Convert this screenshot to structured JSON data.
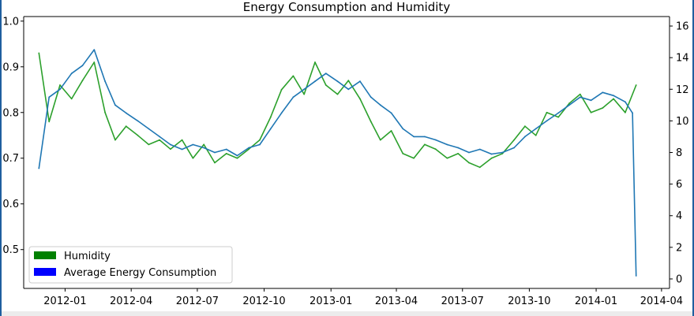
{
  "chart_data": {
    "type": "line",
    "title": "Energy Consumption and Humidity",
    "xlabel": "",
    "ylabel_left": "",
    "ylabel_right": "",
    "x_ticks": [
      "2012-01",
      "2012-04",
      "2012-07",
      "2012-10",
      "2013-01",
      "2013-04",
      "2013-07",
      "2013-10",
      "2014-01",
      "2014-04"
    ],
    "x_range": [
      "2011-11-05",
      "2014-04-12"
    ],
    "y_left": {
      "ticks": [
        "0.5",
        "0.6",
        "0.7",
        "0.8",
        "0.9",
        "1.0"
      ],
      "range": [
        0.415,
        1.01
      ]
    },
    "y_right": {
      "ticks": [
        "0",
        "2",
        "4",
        "6",
        "8",
        "10",
        "12",
        "14",
        "16"
      ],
      "range": [
        -0.6,
        16.6
      ]
    },
    "legend": {
      "position": "lower-left",
      "entries": [
        {
          "label": "Humidity",
          "color": "#008000"
        },
        {
          "label": "Average Energy Consumption",
          "color": "#0000ff"
        }
      ]
    },
    "grid": false,
    "series": [
      {
        "name": "Humidity",
        "axis": "left",
        "color": "#2ca02c",
        "x": [
          "2011-11-26",
          "2011-12-10",
          "2011-12-25",
          "2012-01-10",
          "2012-01-25",
          "2012-02-10",
          "2012-02-25",
          "2012-03-10",
          "2012-03-25",
          "2012-04-10",
          "2012-04-25",
          "2012-05-10",
          "2012-05-25",
          "2012-06-10",
          "2012-06-25",
          "2012-07-10",
          "2012-07-25",
          "2012-08-10",
          "2012-08-25",
          "2012-09-10",
          "2012-09-25",
          "2012-10-10",
          "2012-10-25",
          "2012-11-10",
          "2012-11-25",
          "2012-12-10",
          "2012-12-25",
          "2013-01-10",
          "2013-01-25",
          "2013-02-10",
          "2013-02-25",
          "2013-03-10",
          "2013-03-25",
          "2013-04-10",
          "2013-04-25",
          "2013-05-10",
          "2013-05-25",
          "2013-06-10",
          "2013-06-25",
          "2013-07-10",
          "2013-07-25",
          "2013-08-10",
          "2013-08-25",
          "2013-09-10",
          "2013-09-25",
          "2013-10-10",
          "2013-10-25",
          "2013-11-10",
          "2013-11-25",
          "2013-12-10",
          "2013-12-25",
          "2014-01-10",
          "2014-01-25",
          "2014-02-10",
          "2014-02-25"
        ],
        "values": [
          0.93,
          0.78,
          0.86,
          0.83,
          0.87,
          0.91,
          0.8,
          0.74,
          0.77,
          0.75,
          0.73,
          0.74,
          0.72,
          0.74,
          0.7,
          0.73,
          0.69,
          0.71,
          0.7,
          0.72,
          0.74,
          0.79,
          0.85,
          0.88,
          0.84,
          0.91,
          0.86,
          0.84,
          0.87,
          0.83,
          0.78,
          0.74,
          0.76,
          0.71,
          0.7,
          0.73,
          0.72,
          0.7,
          0.71,
          0.69,
          0.68,
          0.7,
          0.71,
          0.74,
          0.77,
          0.75,
          0.8,
          0.79,
          0.82,
          0.84,
          0.8,
          0.81,
          0.83,
          0.8,
          0.86
        ]
      },
      {
        "name": "Average Energy Consumption",
        "axis": "right",
        "color": "#1f77b4",
        "x": [
          "2011-11-26",
          "2011-12-10",
          "2011-12-25",
          "2012-01-10",
          "2012-01-25",
          "2012-02-10",
          "2012-02-25",
          "2012-03-10",
          "2012-03-25",
          "2012-04-10",
          "2012-04-25",
          "2012-05-10",
          "2012-05-25",
          "2012-06-10",
          "2012-06-25",
          "2012-07-10",
          "2012-07-25",
          "2012-08-10",
          "2012-08-25",
          "2012-09-10",
          "2012-09-25",
          "2012-10-10",
          "2012-10-25",
          "2012-11-10",
          "2012-11-25",
          "2012-12-10",
          "2012-12-25",
          "2013-01-10",
          "2013-01-25",
          "2013-02-10",
          "2013-02-25",
          "2013-03-10",
          "2013-03-25",
          "2013-04-10",
          "2013-04-25",
          "2013-05-10",
          "2013-05-25",
          "2013-06-10",
          "2013-06-25",
          "2013-07-10",
          "2013-07-25",
          "2013-08-10",
          "2013-08-25",
          "2013-09-10",
          "2013-09-25",
          "2013-10-10",
          "2013-10-25",
          "2013-11-10",
          "2013-11-25",
          "2013-12-10",
          "2013-12-25",
          "2014-01-10",
          "2014-01-25",
          "2014-02-10",
          "2014-02-20",
          "2014-02-25"
        ],
        "values": [
          7.0,
          11.5,
          12.0,
          13.0,
          13.5,
          14.5,
          12.5,
          11.0,
          10.5,
          10.0,
          9.5,
          9.0,
          8.5,
          8.2,
          8.5,
          8.3,
          8.0,
          8.2,
          7.8,
          8.3,
          8.5,
          9.5,
          10.5,
          11.5,
          12.0,
          12.5,
          13.0,
          12.5,
          12.0,
          12.5,
          11.5,
          11.0,
          10.5,
          9.5,
          9.0,
          9.0,
          8.8,
          8.5,
          8.3,
          8.0,
          8.2,
          7.9,
          8.0,
          8.3,
          9.0,
          9.5,
          10.0,
          10.5,
          11.0,
          11.5,
          11.3,
          11.8,
          11.6,
          11.2,
          10.5,
          0.2
        ]
      }
    ]
  }
}
